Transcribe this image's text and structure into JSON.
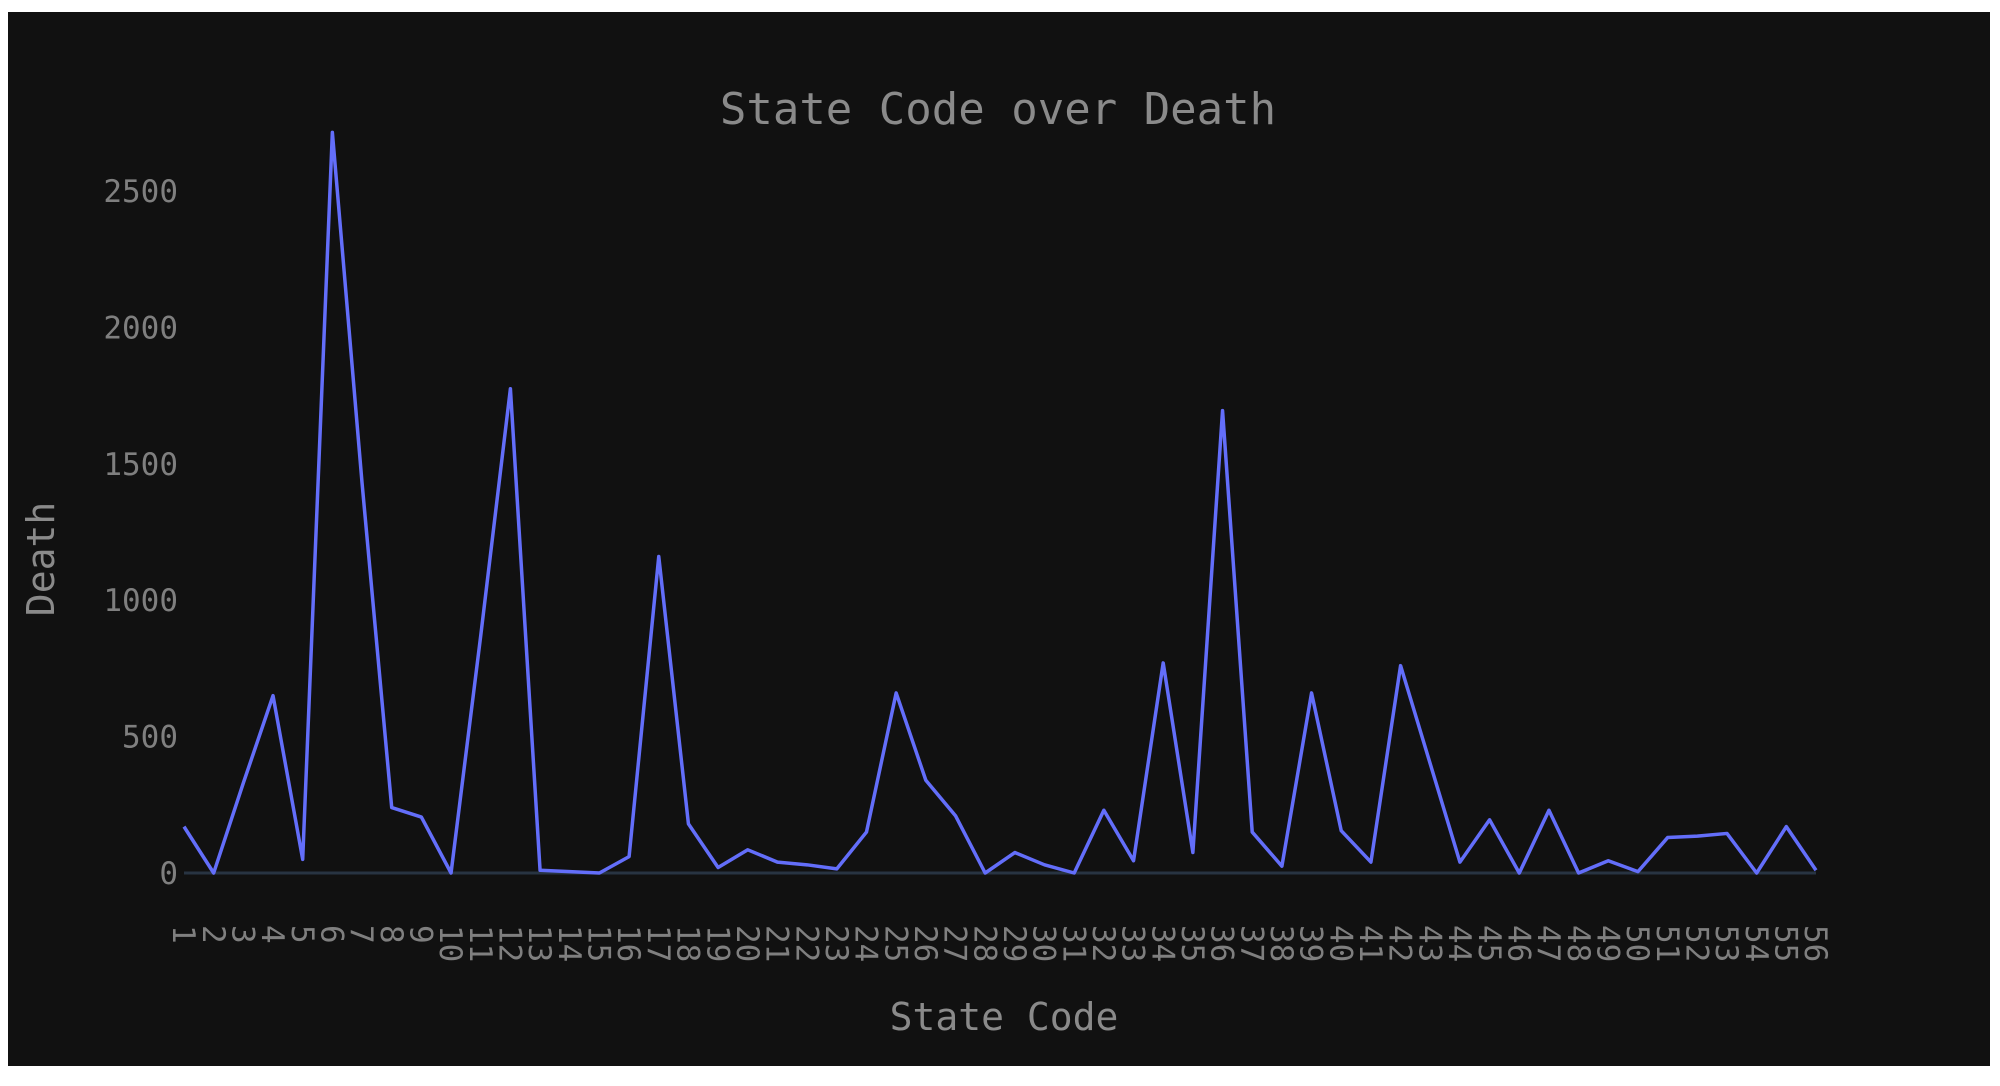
{
  "chart_data": {
    "type": "line",
    "title": "State Code over Death",
    "xlabel": "State Code",
    "ylabel": "Death",
    "x": [
      "1",
      "2",
      "3",
      "4",
      "5",
      "6",
      "7",
      "8",
      "9",
      "10",
      "11",
      "12",
      "13",
      "14",
      "15",
      "16",
      "17",
      "18",
      "19",
      "20",
      "21",
      "22",
      "23",
      "24",
      "25",
      "26",
      "27",
      "28",
      "29",
      "30",
      "31",
      "32",
      "33",
      "34",
      "35",
      "36",
      "37",
      "38",
      "39",
      "40",
      "41",
      "42",
      "43",
      "44",
      "45",
      "46",
      "47",
      "48",
      "49",
      "50",
      "51",
      "52",
      "53",
      "54",
      "55",
      "56"
    ],
    "series": [
      {
        "values": [
          170,
          0,
          330,
          650,
          50,
          2715,
          1430,
          240,
          205,
          0,
          870,
          1775,
          10,
          5,
          0,
          60,
          1160,
          180,
          20,
          85,
          40,
          30,
          15,
          150,
          660,
          340,
          210,
          0,
          75,
          30,
          0,
          230,
          45,
          770,
          75,
          1695,
          150,
          25,
          660,
          155,
          40,
          760,
          400,
          40,
          195,
          0,
          230,
          0,
          45,
          5,
          130,
          135,
          145,
          0,
          170,
          10
        ],
        "color": "#636efa"
      }
    ],
    "yticks": [
      0,
      500,
      1000,
      1500,
      2000,
      2500
    ],
    "ylim": [
      -200,
      2900
    ],
    "grid": false,
    "zeroline_color": "#283442",
    "background": "#111111",
    "text_color": "#8a8a8a"
  }
}
